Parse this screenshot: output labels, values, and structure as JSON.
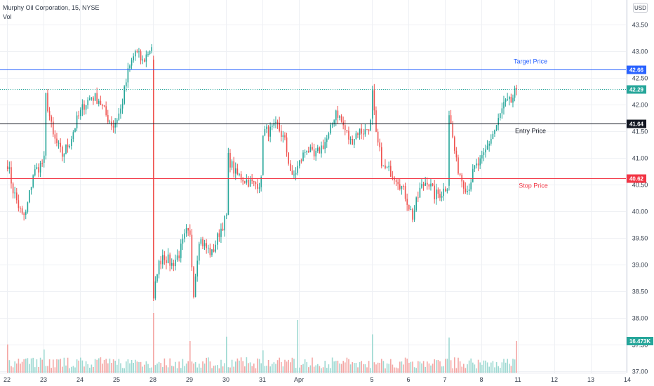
{
  "header": {
    "symbol_title": "Murphy Oil Corporation, 15, NYSE",
    "vol_label": "Vol",
    "currency": "USD"
  },
  "colors": {
    "up": "#26a69a",
    "down": "#ef5350",
    "vol_up": "#9ed9d2",
    "vol_down": "#f4a7a5",
    "target": "#2962ff",
    "entry": "#131722",
    "stop": "#f23645",
    "last": "#26a69a",
    "grid": "#eef0f4"
  },
  "chart_data": {
    "type": "candlestick",
    "title": "Murphy Oil Corporation, 15, NYSE",
    "y_axis": {
      "min": 36.95,
      "max": 43.8,
      "ticks": [
        37.0,
        37.5,
        38.0,
        38.5,
        39.0,
        39.5,
        40.0,
        40.5,
        41.0,
        41.5,
        42.0,
        42.5,
        43.0,
        43.5
      ],
      "tick_labels": [
        "37.00",
        "37.50",
        "38.00",
        "38.50",
        "39.00",
        "39.50",
        "40.00",
        "40.50",
        "41.00",
        "41.50",
        "42.00",
        "42.50",
        "43.00",
        "43.50"
      ]
    },
    "x_axis": {
      "labels": [
        "22",
        "23",
        "24",
        "25",
        "28",
        "29",
        "30",
        "31",
        "Apr",
        "5",
        "6",
        "7",
        "8",
        "11",
        "12",
        "13",
        "14"
      ],
      "label_bar_index": [
        0,
        20,
        40,
        60,
        80,
        100,
        120,
        140,
        160,
        200,
        220,
        240,
        260,
        280,
        300,
        320,
        340
      ]
    },
    "levels": [
      {
        "name": "Target Price",
        "price": 42.66,
        "badge": "42.66",
        "color": "#2962ff",
        "style": "solid"
      },
      {
        "name": "Entry Price",
        "price": 41.64,
        "badge": "41.64",
        "color": "#131722",
        "style": "solid"
      },
      {
        "name": "Stop Price",
        "price": 40.62,
        "badge": "40.62",
        "color": "#f23645",
        "style": "solid"
      }
    ],
    "last_price": {
      "price": 42.29,
      "badge": "42.29",
      "color": "#26a69a",
      "style": "dotted"
    },
    "volume_badge": "16.473K",
    "anchors": [
      [
        0,
        40.9
      ],
      [
        3,
        40.4
      ],
      [
        8,
        39.9
      ],
      [
        10,
        39.95
      ],
      [
        14,
        40.7
      ],
      [
        20,
        40.95
      ],
      [
        21,
        42.15
      ],
      [
        25,
        41.4
      ],
      [
        30,
        41.05
      ],
      [
        34,
        41.3
      ],
      [
        38,
        41.7
      ],
      [
        42,
        42.0
      ],
      [
        46,
        42.15
      ],
      [
        50,
        42.1
      ],
      [
        54,
        41.8
      ],
      [
        58,
        41.6
      ],
      [
        62,
        41.9
      ],
      [
        66,
        42.6
      ],
      [
        70,
        43.0
      ],
      [
        74,
        42.8
      ],
      [
        79,
        43.1
      ],
      [
        80,
        38.3
      ],
      [
        82,
        38.9
      ],
      [
        85,
        39.2
      ],
      [
        90,
        39.0
      ],
      [
        94,
        39.2
      ],
      [
        98,
        39.6
      ],
      [
        100,
        39.5
      ],
      [
        102,
        38.5
      ],
      [
        105,
        39.5
      ],
      [
        108,
        39.35
      ],
      [
        112,
        39.2
      ],
      [
        116,
        39.6
      ],
      [
        120,
        39.9
      ],
      [
        121,
        41.0
      ],
      [
        125,
        40.7
      ],
      [
        130,
        40.6
      ],
      [
        135,
        40.5
      ],
      [
        139,
        40.55
      ],
      [
        140,
        41.5
      ],
      [
        144,
        41.5
      ],
      [
        148,
        41.6
      ],
      [
        152,
        41.3
      ],
      [
        156,
        40.6
      ],
      [
        160,
        40.9
      ],
      [
        164,
        41.2
      ],
      [
        168,
        41.0
      ],
      [
        172,
        41.2
      ],
      [
        176,
        41.4
      ],
      [
        180,
        41.9
      ],
      [
        184,
        41.6
      ],
      [
        188,
        41.3
      ],
      [
        192,
        41.5
      ],
      [
        196,
        41.5
      ],
      [
        199,
        41.65
      ],
      [
        200,
        42.2
      ],
      [
        202,
        41.4
      ],
      [
        206,
        40.8
      ],
      [
        210,
        40.75
      ],
      [
        214,
        40.6
      ],
      [
        218,
        40.3
      ],
      [
        222,
        39.9
      ],
      [
        226,
        40.4
      ],
      [
        230,
        40.6
      ],
      [
        234,
        40.3
      ],
      [
        238,
        40.35
      ],
      [
        241,
        40.5
      ],
      [
        242,
        41.85
      ],
      [
        246,
        40.9
      ],
      [
        249,
        40.6
      ],
      [
        252,
        40.4
      ],
      [
        256,
        40.8
      ],
      [
        260,
        40.95
      ],
      [
        264,
        41.3
      ],
      [
        268,
        41.6
      ],
      [
        272,
        42.0
      ],
      [
        276,
        42.05
      ],
      [
        279,
        42.29
      ]
    ],
    "volume_scale_max": 90
  }
}
